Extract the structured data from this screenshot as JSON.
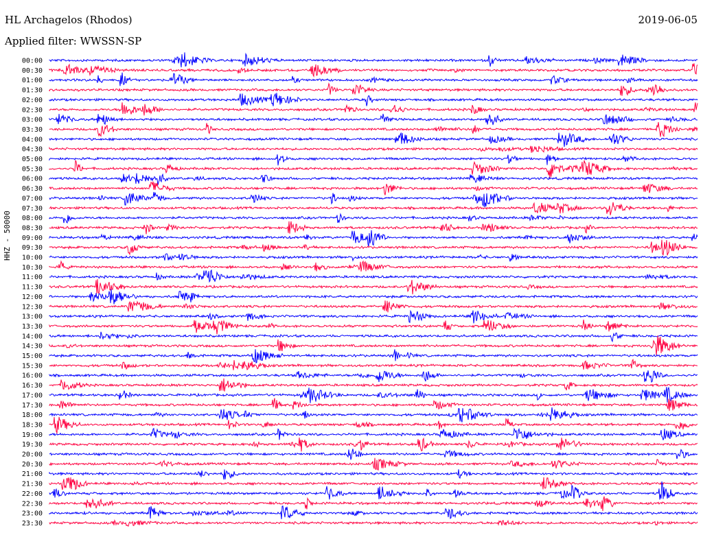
{
  "header": {
    "station": "HL Archagelos (Rhodos)",
    "date": "2019-06-05",
    "filter": "Applied filter: WWSSN-SP"
  },
  "chart_data": {
    "type": "line",
    "ylabel": "HHZ - 50000",
    "rows": [
      "00:00",
      "00:30",
      "01:00",
      "01:30",
      "02:00",
      "02:30",
      "03:00",
      "03:30",
      "04:00",
      "04:30",
      "05:00",
      "05:30",
      "06:00",
      "06:30",
      "07:00",
      "07:30",
      "08:00",
      "08:30",
      "09:00",
      "09:30",
      "10:00",
      "10:30",
      "11:00",
      "11:30",
      "12:00",
      "12:30",
      "13:00",
      "13:30",
      "14:00",
      "14:30",
      "15:00",
      "15:30",
      "16:00",
      "16:30",
      "17:00",
      "17:30",
      "18:00",
      "18:30",
      "19:00",
      "19:30",
      "20:00",
      "20:30",
      "21:00",
      "21:30",
      "22:00",
      "22:30",
      "23:00",
      "23:30"
    ],
    "colors": [
      "#0000ff",
      "#ff0040"
    ],
    "note_events": []
  }
}
